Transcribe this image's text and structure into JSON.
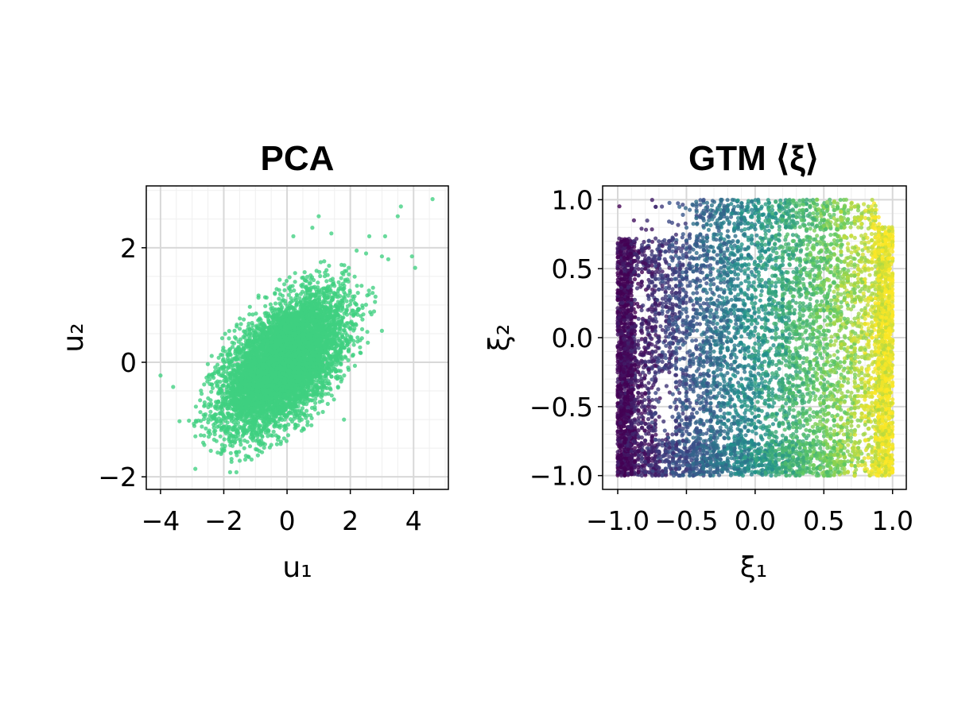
{
  "colors": {
    "pca_points": "#3fcf80",
    "grid_major": "#d8d8d8",
    "grid_minor": "#efefef",
    "frame": "#000000",
    "colormap": [
      "#440154",
      "#3b528b",
      "#21918c",
      "#5ec962",
      "#fde725"
    ]
  },
  "chart_data": [
    {
      "type": "scatter",
      "title": "PCA",
      "xlabel": "u₁",
      "ylabel": "u₂",
      "xlim": [
        -4.45,
        5.1
      ],
      "ylim": [
        -2.22,
        3.08
      ],
      "xticks": [
        -4,
        -2,
        0,
        2,
        4
      ],
      "xtick_labels": [
        "−4",
        "−2",
        "0",
        "2",
        "4"
      ],
      "yticks": [
        -2,
        0,
        2
      ],
      "ytick_labels": [
        "−2",
        "0",
        "2"
      ],
      "grid": true,
      "minor_grid": true,
      "point_color": "#3fcf80",
      "point_count": 7000,
      "distribution": {
        "center": [
          -0.1,
          0.0
        ],
        "sd_u1": 0.95,
        "sd_u2": 0.58,
        "correlation": 0.55
      },
      "outliers": [
        [
          4.6,
          2.85
        ],
        [
          3.6,
          2.72
        ],
        [
          3.5,
          2.55
        ],
        [
          2.6,
          2.2
        ],
        [
          3.1,
          2.2
        ],
        [
          3.0,
          1.85
        ],
        [
          3.2,
          1.8
        ],
        [
          3.95,
          1.85
        ],
        [
          4.05,
          1.65
        ],
        [
          2.5,
          1.9
        ],
        [
          2.2,
          1.95
        ],
        [
          3.0,
          0.55
        ],
        [
          -4.0,
          -0.23
        ],
        [
          -3.6,
          -0.43
        ],
        [
          -3.4,
          -1.03
        ],
        [
          -3.1,
          -1.02
        ],
        [
          -2.9,
          -1.86
        ],
        [
          -1.8,
          -1.92
        ],
        [
          -1.6,
          -1.92
        ],
        [
          -2.7,
          -0.55
        ],
        [
          -2.6,
          -0.75
        ],
        [
          1.0,
          2.55
        ],
        [
          0.8,
          2.35
        ],
        [
          1.4,
          2.25
        ],
        [
          0.2,
          2.2
        ],
        [
          1.8,
          -1.0
        ],
        [
          -2.4,
          -1.0
        ]
      ]
    },
    {
      "type": "scatter",
      "title": "GTM ⟨ξ⟩",
      "xlabel": "ξ₁",
      "ylabel": "ξ₂",
      "xlim": [
        -1.11,
        1.1
      ],
      "ylim": [
        -1.1,
        1.1
      ],
      "xticks": [
        -1.0,
        -0.5,
        0.0,
        0.5,
        1.0
      ],
      "xtick_labels": [
        "−1.0",
        "−0.5",
        "0.0",
        "0.5",
        "1.0"
      ],
      "yticks": [
        -1.0,
        -0.5,
        0.0,
        0.5,
        1.0
      ],
      "ytick_labels": [
        "−1.0",
        "−0.5",
        "0.0",
        "0.5",
        "1.0"
      ],
      "grid": true,
      "minor_grid": true,
      "colormap": "viridis",
      "color_by": "ξ₁",
      "point_count": 9000
    }
  ]
}
